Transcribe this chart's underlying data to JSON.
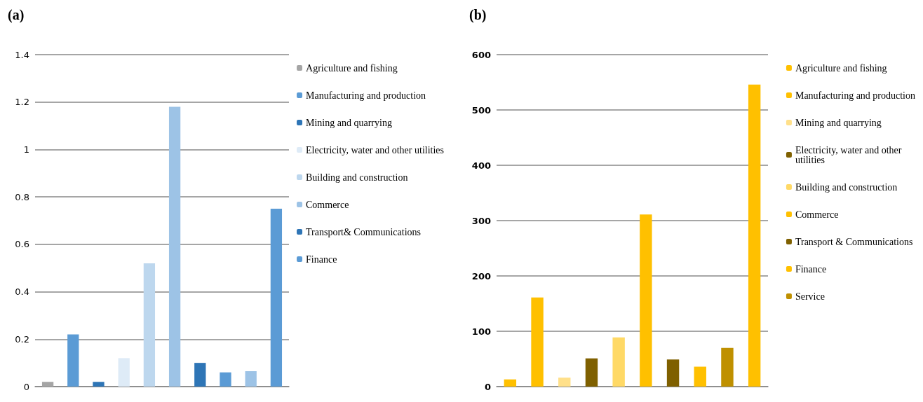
{
  "chart_data": [
    {
      "type": "bar",
      "title": "(a)",
      "categories": [
        null,
        null,
        null,
        null,
        null,
        null,
        null,
        null,
        null,
        null
      ],
      "stacked": true,
      "ylim": [
        0,
        1.4
      ],
      "yticks": [
        0,
        0.2,
        0.4,
        0.6,
        0.8,
        1,
        1.2,
        1.4
      ],
      "grid": "y",
      "legend": "right",
      "tick_labels": "y",
      "series": [
        {
          "name": "Agriculture and fishing",
          "color": "#a5a5a5",
          "values": [
            0.02,
            null,
            null,
            null,
            null,
            null,
            null,
            null,
            null,
            null
          ]
        },
        {
          "name": "Manufacturing and production",
          "color": "#5b9bd5",
          "values": [
            null,
            0.22,
            null,
            null,
            null,
            null,
            null,
            null,
            null,
            null
          ]
        },
        {
          "name": "Mining and quarrying",
          "color": "#2e75b6",
          "values": [
            null,
            null,
            0.02,
            null,
            null,
            null,
            null,
            null,
            null,
            null
          ]
        },
        {
          "name": "Electricity, water and other utilities",
          "color": "#deebf7",
          "values": [
            null,
            null,
            null,
            0.12,
            null,
            null,
            null,
            null,
            null,
            null
          ]
        },
        {
          "name": "Building and construction",
          "color": "#bdd7ee",
          "values": [
            null,
            null,
            null,
            null,
            0.52,
            null,
            null,
            null,
            null,
            null
          ]
        },
        {
          "name": "Commerce",
          "color": "#9dc3e6",
          "values": [
            null,
            null,
            null,
            null,
            null,
            1.18,
            null,
            null,
            null,
            null
          ]
        },
        {
          "name": "Transport& Communications",
          "color": "#2e75b6",
          "values": [
            null,
            null,
            null,
            null,
            null,
            null,
            0.1,
            null,
            null,
            null
          ]
        },
        {
          "name": "Finance",
          "color": "#5b9bd5",
          "values": [
            null,
            null,
            null,
            null,
            null,
            null,
            null,
            0.06,
            null,
            null
          ]
        },
        {
          "color": "#9dc3e6",
          "values": [
            null,
            null,
            null,
            null,
            null,
            null,
            null,
            null,
            0.065,
            null
          ]
        },
        {
          "color": "#5b9bd5",
          "values": [
            null,
            null,
            null,
            null,
            null,
            null,
            null,
            null,
            null,
            0.75
          ]
        }
      ]
    },
    {
      "type": "bar",
      "title": "(b)",
      "categories": [
        null,
        null,
        null,
        null,
        null,
        null,
        null,
        null,
        null,
        null
      ],
      "stacked": true,
      "ylim": [
        0,
        600
      ],
      "yticks": [
        0,
        100,
        200,
        300,
        400,
        500,
        600
      ],
      "grid": "y",
      "legend": "right",
      "tick_labels": "y",
      "series": [
        {
          "name": "Agriculture and fishing",
          "color": "#ffc000",
          "values": [
            13,
            null,
            null,
            null,
            null,
            null,
            null,
            null,
            null,
            null
          ]
        },
        {
          "name": "Manufacturing and production",
          "color": "#ffc000",
          "values": [
            null,
            161,
            null,
            null,
            null,
            null,
            null,
            null,
            null,
            null
          ]
        },
        {
          "name": "Mining and quarrying",
          "color": "#ffe08a",
          "values": [
            null,
            null,
            16,
            null,
            null,
            null,
            null,
            null,
            null,
            null
          ]
        },
        {
          "name": "Electricity, water and other utilities",
          "color": "#7f6000",
          "values": [
            null,
            null,
            null,
            51,
            null,
            null,
            null,
            null,
            null,
            null
          ]
        },
        {
          "name": "Building and construction",
          "color": "#ffd966",
          "values": [
            null,
            null,
            null,
            null,
            89,
            null,
            null,
            null,
            null,
            null
          ]
        },
        {
          "name": "Commerce",
          "color": "#ffc000",
          "values": [
            null,
            null,
            null,
            null,
            null,
            311,
            null,
            null,
            null,
            null
          ]
        },
        {
          "name": "Transport & Communications",
          "color": "#7f6000",
          "values": [
            null,
            null,
            null,
            null,
            null,
            null,
            49,
            null,
            null,
            null
          ]
        },
        {
          "name": "Finance",
          "color": "#ffc000",
          "values": [
            null,
            null,
            null,
            null,
            null,
            null,
            null,
            36,
            null,
            null
          ]
        },
        {
          "name": "Service",
          "color": "#bf9000",
          "values": [
            null,
            null,
            null,
            null,
            null,
            null,
            null,
            null,
            70,
            null
          ]
        },
        {
          "color": "#ffc000",
          "values": [
            null,
            null,
            null,
            null,
            null,
            null,
            null,
            null,
            null,
            546
          ]
        }
      ]
    }
  ]
}
